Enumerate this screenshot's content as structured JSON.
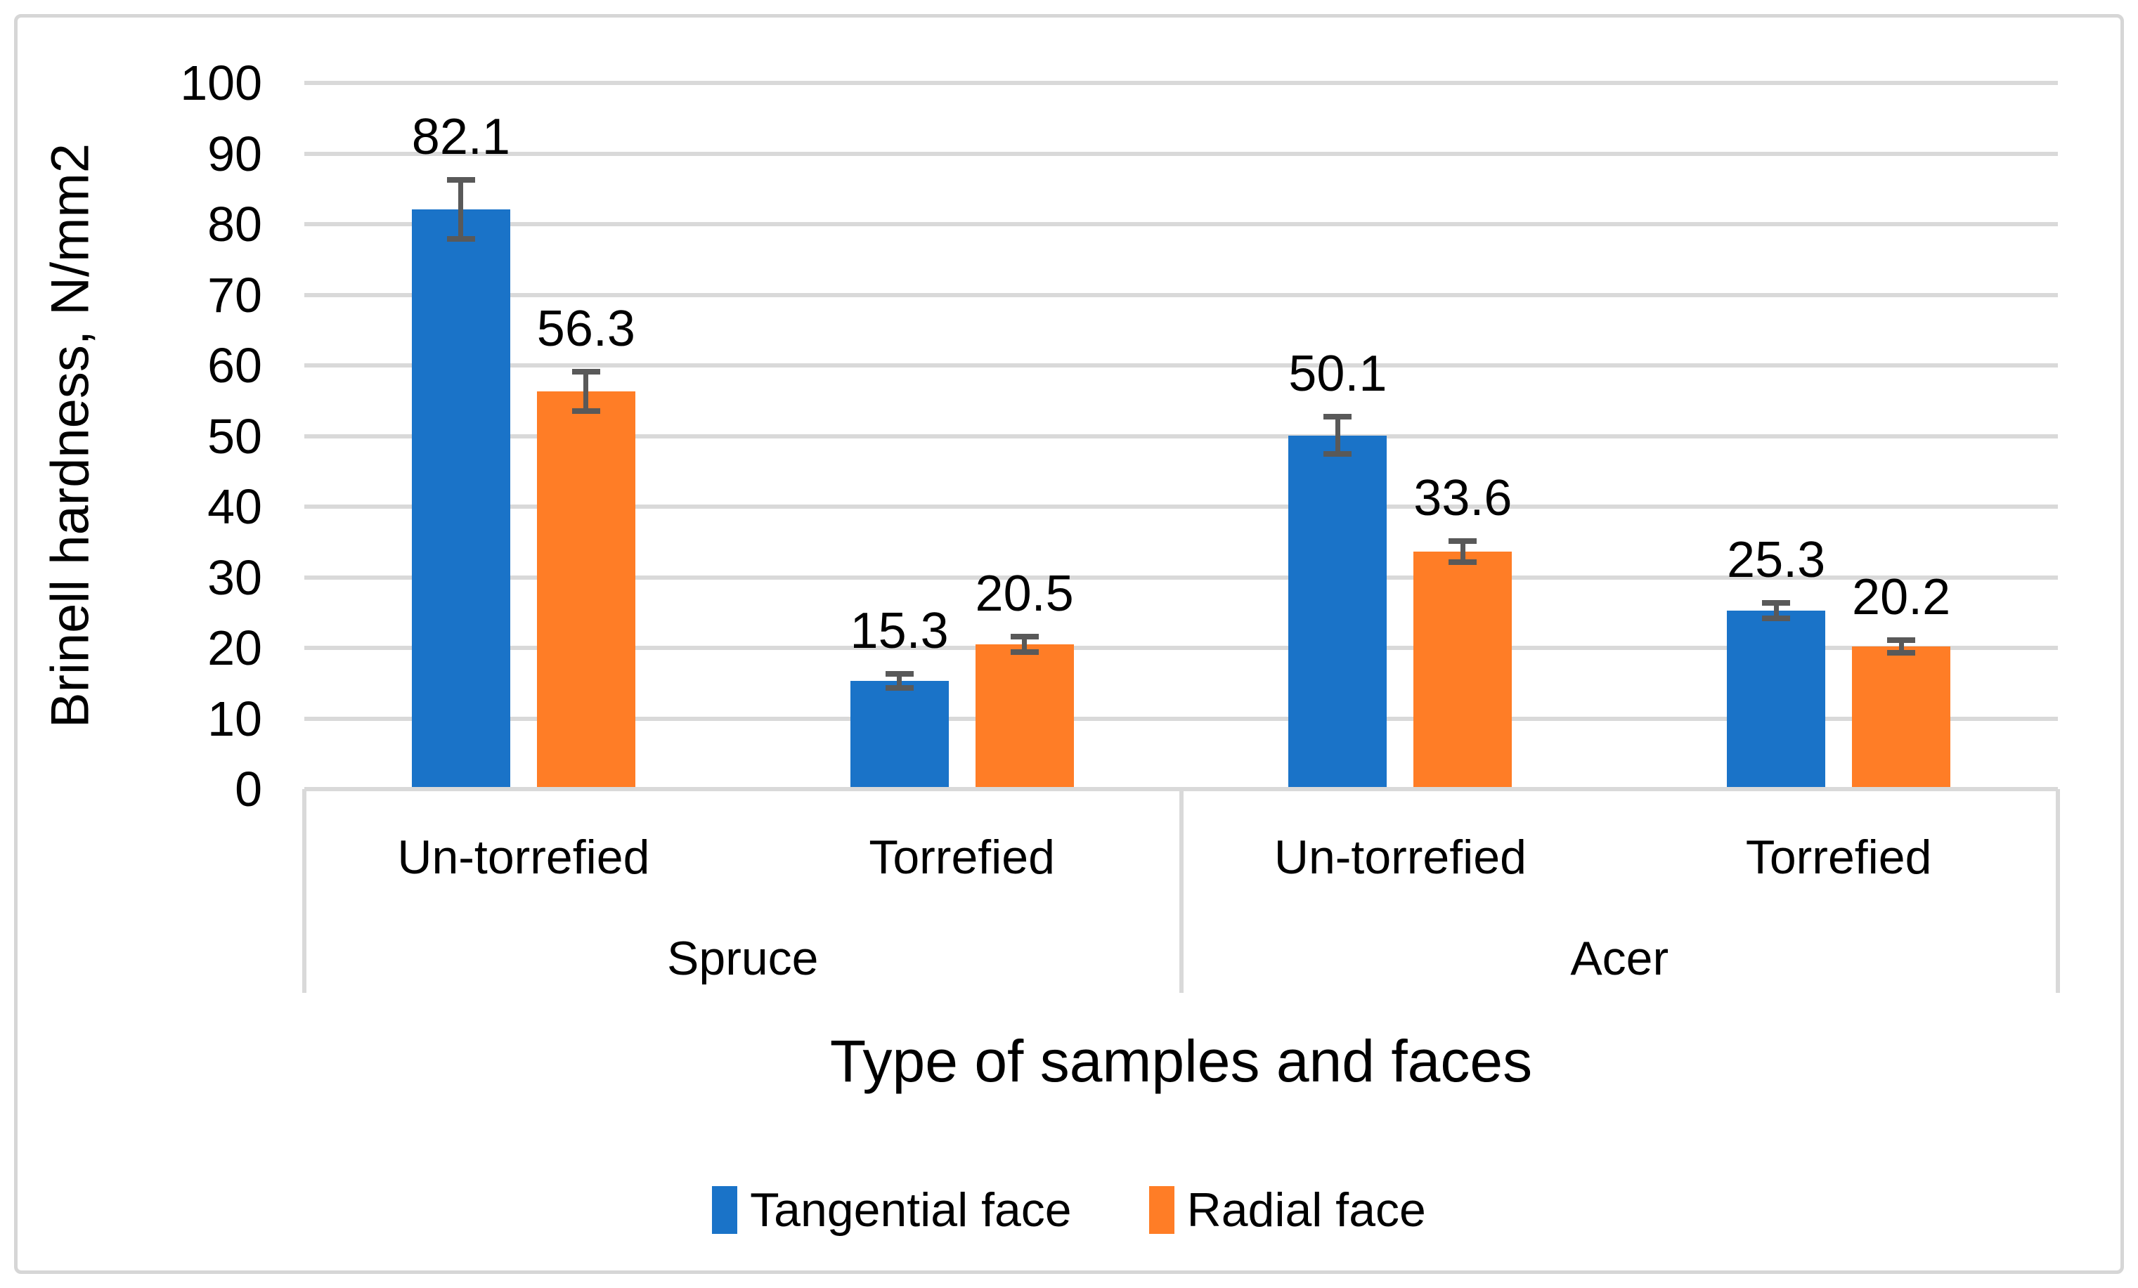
{
  "figure": {
    "y_axis_title": "Brinell hardness, N/mm2",
    "x_axis_title": "Type of samples and faces"
  },
  "colors": {
    "series_blue": "#1a73c8",
    "series_orange": "#ff7d26",
    "gridline": "#d9d9d9",
    "error_bar": "#595959",
    "text": "#000000",
    "figure_border": "#d6d6d6"
  },
  "chart_data": {
    "type": "bar",
    "title": "",
    "ylabel": "Brinell hardness, N/mm2",
    "xlabel": "Type of samples and faces",
    "ylim": [
      0,
      100
    ],
    "ytick_step": 10,
    "yticks": [
      0,
      10,
      20,
      30,
      40,
      50,
      60,
      70,
      80,
      90,
      100
    ],
    "grid": true,
    "legend_position": "bottom",
    "group_labels": [
      "Spruce",
      "Acer"
    ],
    "categories": [
      {
        "label": "Un-torrefied",
        "group": "Spruce"
      },
      {
        "label": "Torrefied",
        "group": "Spruce"
      },
      {
        "label": "Un-torrefied",
        "group": "Acer"
      },
      {
        "label": "Torrefied",
        "group": "Acer"
      }
    ],
    "series": [
      {
        "name": "Tangential face",
        "color": "#1a73c8",
        "values": [
          82.1,
          15.3,
          50.1,
          25.3
        ],
        "errors": [
          4.2,
          1.0,
          2.6,
          1.1
        ],
        "data_labels": [
          "82.1",
          "15.3",
          "50.1",
          "25.3"
        ]
      },
      {
        "name": "Radial face",
        "color": "#ff7d26",
        "values": [
          56.3,
          20.5,
          33.6,
          20.2
        ],
        "errors": [
          2.8,
          1.1,
          1.5,
          0.9
        ],
        "data_labels": [
          "56.3",
          "20.5",
          "33.6",
          "20.2"
        ]
      }
    ]
  }
}
